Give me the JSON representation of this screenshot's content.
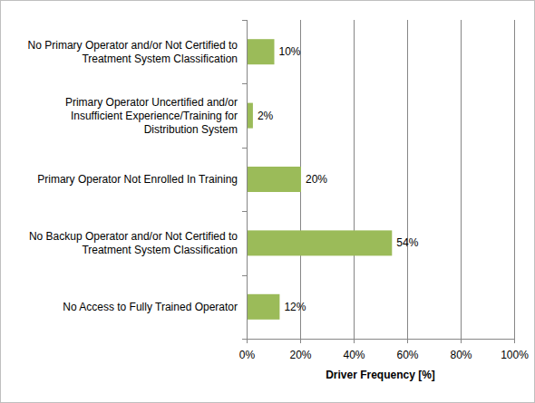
{
  "chart_data": {
    "type": "bar",
    "orientation": "horizontal",
    "categories": [
      "No Primary Operator and/or Not Certified to Treatment System Classification",
      "Primary Operator Uncertified and/or Insufficient Experience/Training for Distribution System",
      "Primary Operator Not Enrolled In Training",
      "No Backup Operator and/or Not Certified to Treatment System Classification",
      "No Access to Fully Trained Operator"
    ],
    "values": [
      10,
      2,
      20,
      54,
      12
    ],
    "value_labels": [
      "10%",
      "2%",
      "20%",
      "54%",
      "12%"
    ],
    "data_labels": true,
    "color": "#9bbb59",
    "xlabel": "Driver Frequency [%]",
    "xlim": [
      0,
      100
    ],
    "xticks": [
      {
        "value": 0,
        "label": "0%"
      },
      {
        "value": 20,
        "label": "20%"
      },
      {
        "value": 40,
        "label": "40%"
      },
      {
        "value": 60,
        "label": "60%"
      },
      {
        "value": 80,
        "label": "80%"
      },
      {
        "value": 100,
        "label": "100%"
      }
    ],
    "grid": true
  }
}
